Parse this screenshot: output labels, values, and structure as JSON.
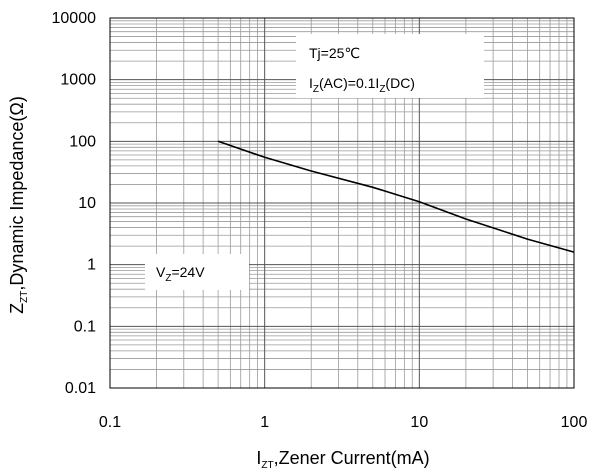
{
  "chart_data": {
    "type": "line",
    "x_scale": "log",
    "y_scale": "log",
    "xlim": [
      0.1,
      100
    ],
    "ylim": [
      0.01,
      10000
    ],
    "grid": true,
    "x_ticks": [
      "0.1",
      "1",
      "10",
      "100"
    ],
    "y_ticks": [
      "10000",
      "1000",
      "100",
      "10",
      "1",
      "0.1",
      "0.01"
    ],
    "xlabel": {
      "main": "I",
      "sub": "ZT",
      "rest": ",Zener Current(mA)"
    },
    "ylabel": {
      "main": "Z",
      "sub": "ZT",
      "rest": ",Dynamic Impedance(Ω)"
    },
    "annotations": {
      "tj": "Tj=25℃",
      "iz": {
        "p1": "I",
        "s1": "Z",
        "p2": "(AC)=0.1I",
        "s2": "Z",
        "p3": "(DC)"
      },
      "vz": {
        "main": "V",
        "sub": "Z",
        "rest": "=24V"
      }
    },
    "series": [
      {
        "x": [
          0.5,
          1,
          2,
          5,
          10,
          20,
          50,
          100
        ],
        "y": [
          100,
          55,
          33,
          18,
          10.5,
          5.5,
          2.6,
          1.6
        ]
      }
    ],
    "line_color": "#000000",
    "major_grid_color": "#555555",
    "minor_grid_color": "#9a9a9a"
  }
}
